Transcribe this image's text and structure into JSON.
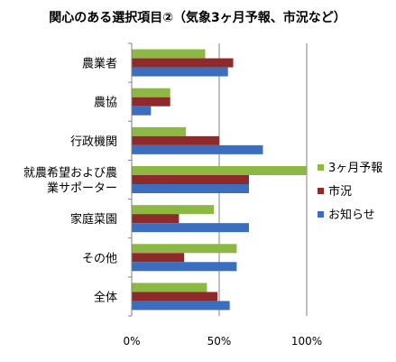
{
  "chart_data": {
    "type": "bar",
    "orientation": "horizontal",
    "title": "関心のある選択項目②（気象3ヶ月予報、市況など）",
    "categories": [
      "農業者",
      "農協",
      "行政機関",
      "就農希望および農業サポーター",
      "家庭菜園",
      "その他",
      "全体"
    ],
    "category_label_lines": [
      [
        "農業者"
      ],
      [
        "農協"
      ],
      [
        "行政機関"
      ],
      [
        "就農希望および農",
        "業サポーター"
      ],
      [
        "家庭菜園"
      ],
      [
        "その他"
      ],
      [
        "全体"
      ]
    ],
    "series": [
      {
        "name": "3ヶ月予報",
        "color": "#8DB843",
        "values": [
          42,
          22,
          31,
          100,
          47,
          60,
          43
        ]
      },
      {
        "name": "市況",
        "color": "#8E2A2A",
        "values": [
          58,
          22,
          50,
          67,
          27,
          30,
          49
        ]
      },
      {
        "name": "お知らせ",
        "color": "#3B6EBF",
        "values": [
          55,
          11,
          75,
          67,
          67,
          60,
          56
        ]
      }
    ],
    "xlim": [
      0,
      100
    ],
    "x_ticks": [
      "0%",
      "50%",
      "100%"
    ],
    "x_tick_values": [
      0,
      50,
      100
    ],
    "grid": "vertical",
    "legend_position": "right"
  }
}
